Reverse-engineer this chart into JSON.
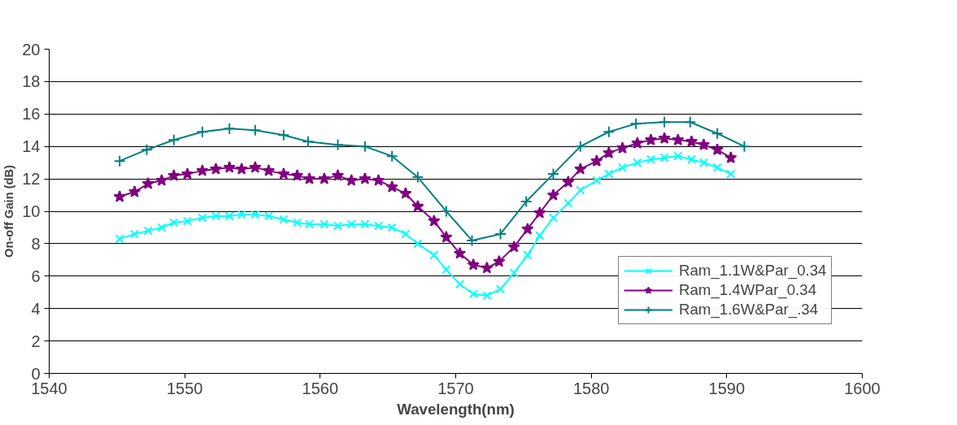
{
  "chart_data": {
    "type": "line",
    "xlabel": "Wavelength(nm)",
    "ylabel": "On-off Gain (dB)",
    "xlim": [
      1540,
      1600
    ],
    "xticks": [
      1540,
      1550,
      1560,
      1570,
      1580,
      1590,
      1600
    ],
    "ylim": [
      0,
      20
    ],
    "yticks": [
      0,
      2,
      4,
      6,
      8,
      10,
      12,
      14,
      16,
      18,
      20
    ],
    "grid": "y",
    "legend": "right",
    "line_style": "solid",
    "series": [
      {
        "name": "Ram_1.1W&Par_0.34",
        "color": "#00ffff",
        "marker": "x",
        "x": [
          1545.2,
          1546.3,
          1547.3,
          1548.3,
          1549.2,
          1550.2,
          1551.3,
          1552.3,
          1553.3,
          1554.2,
          1555.2,
          1556.2,
          1557.3,
          1558.3,
          1559.2,
          1560.3,
          1561.3,
          1562.3,
          1563.3,
          1564.3,
          1565.3,
          1566.3,
          1567.2,
          1568.4,
          1569.3,
          1570.3,
          1571.3,
          1572.3,
          1573.3,
          1574.3,
          1575.3,
          1576.2,
          1577.2,
          1578.3,
          1579.2,
          1580.4,
          1581.3,
          1582.3,
          1583.4,
          1584.4,
          1585.4,
          1586.4,
          1587.4,
          1588.3,
          1589.3,
          1590.3
        ],
        "values": [
          8.3,
          8.6,
          8.8,
          9.0,
          9.3,
          9.4,
          9.6,
          9.7,
          9.7,
          9.8,
          9.8,
          9.7,
          9.5,
          9.3,
          9.2,
          9.2,
          9.1,
          9.2,
          9.2,
          9.1,
          9.0,
          8.6,
          8.0,
          7.3,
          6.4,
          5.5,
          4.9,
          4.8,
          5.2,
          6.2,
          7.3,
          8.5,
          9.6,
          10.5,
          11.3,
          11.9,
          12.3,
          12.7,
          13.0,
          13.2,
          13.3,
          13.4,
          13.2,
          13.0,
          12.7,
          12.3
        ]
      },
      {
        "name": "Ram_1.4WPar_0.34",
        "color": "#800080",
        "marker": "star",
        "x": [
          1545.2,
          1546.3,
          1547.3,
          1548.3,
          1549.2,
          1550.2,
          1551.3,
          1552.3,
          1553.3,
          1554.2,
          1555.2,
          1556.2,
          1557.3,
          1558.3,
          1559.2,
          1560.3,
          1561.3,
          1562.3,
          1563.3,
          1564.3,
          1565.3,
          1566.3,
          1567.2,
          1568.4,
          1569.3,
          1570.3,
          1571.3,
          1572.3,
          1573.2,
          1574.3,
          1575.3,
          1576.2,
          1577.2,
          1578.3,
          1579.2,
          1580.4,
          1581.3,
          1582.3,
          1583.4,
          1584.4,
          1585.4,
          1586.4,
          1587.4,
          1588.3,
          1589.3,
          1590.3
        ],
        "values": [
          10.9,
          11.2,
          11.7,
          11.9,
          12.2,
          12.3,
          12.5,
          12.6,
          12.7,
          12.6,
          12.7,
          12.5,
          12.3,
          12.2,
          12.0,
          12.0,
          12.2,
          11.9,
          12.0,
          11.9,
          11.5,
          11.1,
          10.3,
          9.4,
          8.4,
          7.4,
          6.7,
          6.5,
          6.9,
          7.8,
          8.9,
          9.9,
          11.0,
          11.8,
          12.6,
          13.1,
          13.6,
          13.9,
          14.2,
          14.4,
          14.5,
          14.4,
          14.3,
          14.1,
          13.8,
          13.3
        ]
      },
      {
        "name": "Ram_1.6W&Par_.34",
        "color": "#008080",
        "marker": "cross",
        "x": [
          1545.2,
          1547.2,
          1549.2,
          1551.3,
          1553.3,
          1555.2,
          1557.3,
          1559.1,
          1561.3,
          1563.3,
          1565.3,
          1567.2,
          1569.3,
          1571.2,
          1573.3,
          1575.2,
          1577.2,
          1579.2,
          1581.3,
          1583.3,
          1585.4,
          1587.3,
          1589.3,
          1591.3
        ],
        "values": [
          13.1,
          13.8,
          14.4,
          14.9,
          15.1,
          15.0,
          14.7,
          14.3,
          14.1,
          14.0,
          13.4,
          12.1,
          10.0,
          8.2,
          8.6,
          10.6,
          12.3,
          14.0,
          14.9,
          15.4,
          15.5,
          15.5,
          14.8,
          14.0
        ]
      }
    ]
  }
}
